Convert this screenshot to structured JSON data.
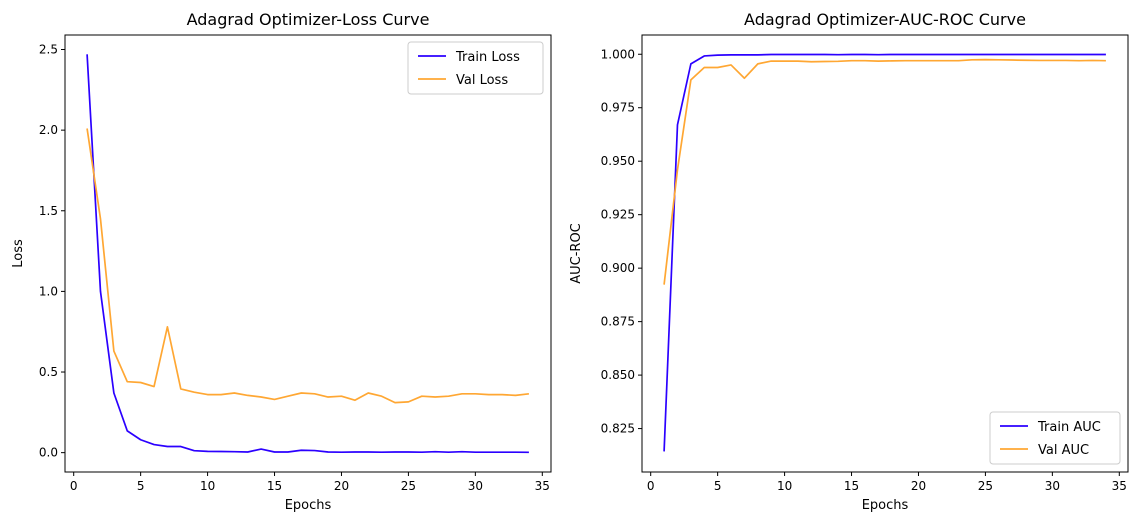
{
  "chart_data": [
    {
      "type": "line",
      "title": "Adagrad Optimizer-Loss Curve",
      "xlabel": "Epochs",
      "ylabel": "Loss",
      "xlim": [
        -0.65,
        35.65
      ],
      "ylim": [
        -0.12,
        2.59
      ],
      "xticks": [
        0,
        5,
        10,
        15,
        20,
        25,
        30,
        35
      ],
      "yticks": [
        0.0,
        0.5,
        1.0,
        1.5,
        2.0,
        2.5
      ],
      "ytick_labels": [
        "0.0",
        "0.5",
        "1.0",
        "1.5",
        "2.0",
        "2.5"
      ],
      "grid": false,
      "legend_position": "top-right",
      "x": [
        1,
        2,
        3,
        4,
        5,
        6,
        7,
        8,
        9,
        10,
        11,
        12,
        13,
        14,
        15,
        16,
        17,
        18,
        19,
        20,
        21,
        22,
        23,
        24,
        25,
        26,
        27,
        28,
        29,
        30,
        31,
        32,
        33,
        34
      ],
      "series": [
        {
          "name": "Train Loss",
          "color": "#2b00ff",
          "values": [
            2.47,
            1.0,
            0.37,
            0.135,
            0.08,
            0.05,
            0.038,
            0.038,
            0.012,
            0.008,
            0.007,
            0.006,
            0.004,
            0.022,
            0.004,
            0.004,
            0.015,
            0.013,
            0.004,
            0.003,
            0.004,
            0.004,
            0.003,
            0.004,
            0.004,
            0.003,
            0.006,
            0.003,
            0.006,
            0.003,
            0.003,
            0.003,
            0.003,
            0.002
          ]
        },
        {
          "name": "Val Loss",
          "color": "#ffa733",
          "values": [
            2.01,
            1.45,
            0.63,
            0.44,
            0.435,
            0.41,
            0.78,
            0.395,
            0.375,
            0.36,
            0.36,
            0.37,
            0.355,
            0.345,
            0.33,
            0.35,
            0.37,
            0.365,
            0.345,
            0.35,
            0.325,
            0.37,
            0.35,
            0.31,
            0.315,
            0.35,
            0.345,
            0.35,
            0.365,
            0.365,
            0.36,
            0.36,
            0.355,
            0.365
          ]
        }
      ]
    },
    {
      "type": "line",
      "title": "Adagrad Optimizer-AUC-ROC Curve",
      "xlabel": "Epochs",
      "ylabel": "AUC-ROC",
      "xlim": [
        -0.65,
        35.65
      ],
      "ylim": [
        0.8047,
        1.009
      ],
      "xticks": [
        0,
        5,
        10,
        15,
        20,
        25,
        30,
        35
      ],
      "yticks": [
        0.825,
        0.85,
        0.875,
        0.9,
        0.925,
        0.95,
        0.975,
        1.0
      ],
      "ytick_labels": [
        "0.825",
        "0.850",
        "0.875",
        "0.900",
        "0.925",
        "0.950",
        "0.975",
        "1.000"
      ],
      "grid": false,
      "legend_position": "bottom-right",
      "x": [
        1,
        2,
        3,
        4,
        5,
        6,
        7,
        8,
        9,
        10,
        11,
        12,
        13,
        14,
        15,
        16,
        17,
        18,
        19,
        20,
        21,
        22,
        23,
        24,
        25,
        26,
        27,
        28,
        29,
        30,
        31,
        32,
        33,
        34
      ],
      "series": [
        {
          "name": "Train AUC",
          "color": "#2b00ff",
          "values": [
            0.8143,
            0.967,
            0.9955,
            0.9992,
            0.9996,
            0.9997,
            0.9997,
            0.9997,
            0.9999,
            0.9999,
            0.9999,
            0.9999,
            0.9999,
            0.9998,
            0.9999,
            0.9999,
            0.9998,
            0.9999,
            0.9999,
            0.9999,
            0.9999,
            0.9999,
            0.9999,
            0.9999,
            0.9999,
            0.9999,
            0.9999,
            0.9999,
            0.9999,
            0.9999,
            0.9999,
            0.9999,
            0.9999,
            0.9999
          ]
        },
        {
          "name": "Val AUC",
          "color": "#ffa733",
          "values": [
            0.8923,
            0.946,
            0.988,
            0.9938,
            0.9938,
            0.995,
            0.9888,
            0.9955,
            0.9968,
            0.9968,
            0.9968,
            0.9965,
            0.9966,
            0.9967,
            0.997,
            0.997,
            0.9968,
            0.9969,
            0.997,
            0.997,
            0.997,
            0.997,
            0.997,
            0.9974,
            0.9975,
            0.9974,
            0.9973,
            0.9972,
            0.9971,
            0.9971,
            0.9971,
            0.997,
            0.9971,
            0.997
          ]
        }
      ]
    }
  ]
}
